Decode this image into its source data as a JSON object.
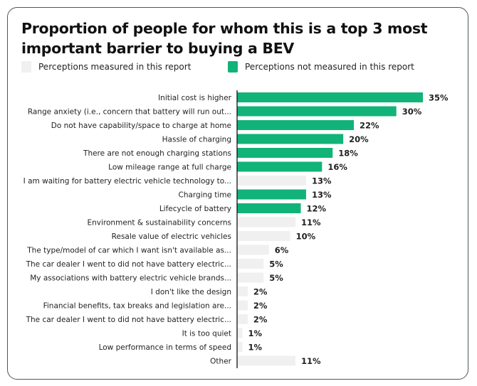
{
  "chart_data": {
    "type": "bar",
    "orientation": "horizontal",
    "title": "Proportion of people for whom this is a top 3 most important barrier to buying a BEV",
    "legend": [
      {
        "name": "Perceptions measured in this report",
        "color": "#f0f0f0"
      },
      {
        "name": "Perceptions not measured in this report",
        "color": "#12b378"
      }
    ],
    "legend_position": "top-left",
    "value_suffix": "%",
    "grid": false,
    "xlim": [
      0,
      35
    ],
    "categories": [
      "Initial cost is higher",
      "Range anxiety (i.e., concern that battery will run out...",
      "Do not have capability/space to charge at home",
      "Hassle of charging",
      "There are not enough charging stations",
      "Low mileage range at full charge",
      "I am waiting for battery electric vehicle technology to...",
      "Charging time",
      "Lifecycle of battery",
      "Environment & sustainability concerns",
      "Resale value of electric vehicles",
      "The type/model of car which I want isn't available as...",
      "The car dealer I went to did not have battery electric...",
      "My associations with battery electric vehicle brands...",
      "I don't like the design",
      "Financial benefits, tax breaks and legislation are...",
      "The car dealer I went to did not have battery electric...",
      "It is too quiet",
      "Low performance in terms of speed",
      "Other"
    ],
    "values": [
      35,
      30,
      22,
      20,
      18,
      16,
      13,
      13,
      12,
      11,
      10,
      6,
      5,
      5,
      2,
      2,
      2,
      1,
      1,
      11
    ],
    "group": [
      1,
      1,
      1,
      1,
      1,
      1,
      0,
      1,
      1,
      0,
      0,
      0,
      0,
      0,
      0,
      0,
      0,
      0,
      0,
      0
    ]
  }
}
